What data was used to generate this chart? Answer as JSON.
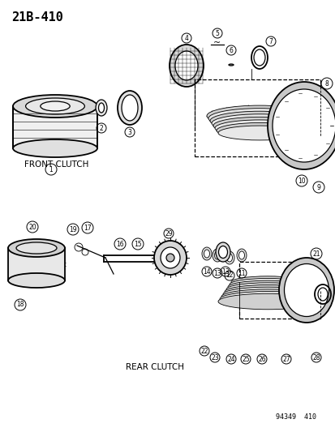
{
  "title": "21B-410",
  "subtitle_front": "FRONT CLUTCH",
  "subtitle_rear": "REAR CLUTCH",
  "watermark": "94349  410",
  "bg_color": "#ffffff",
  "line_color": "#000000",
  "fig_width": 4.14,
  "fig_height": 5.33,
  "dpi": 100
}
